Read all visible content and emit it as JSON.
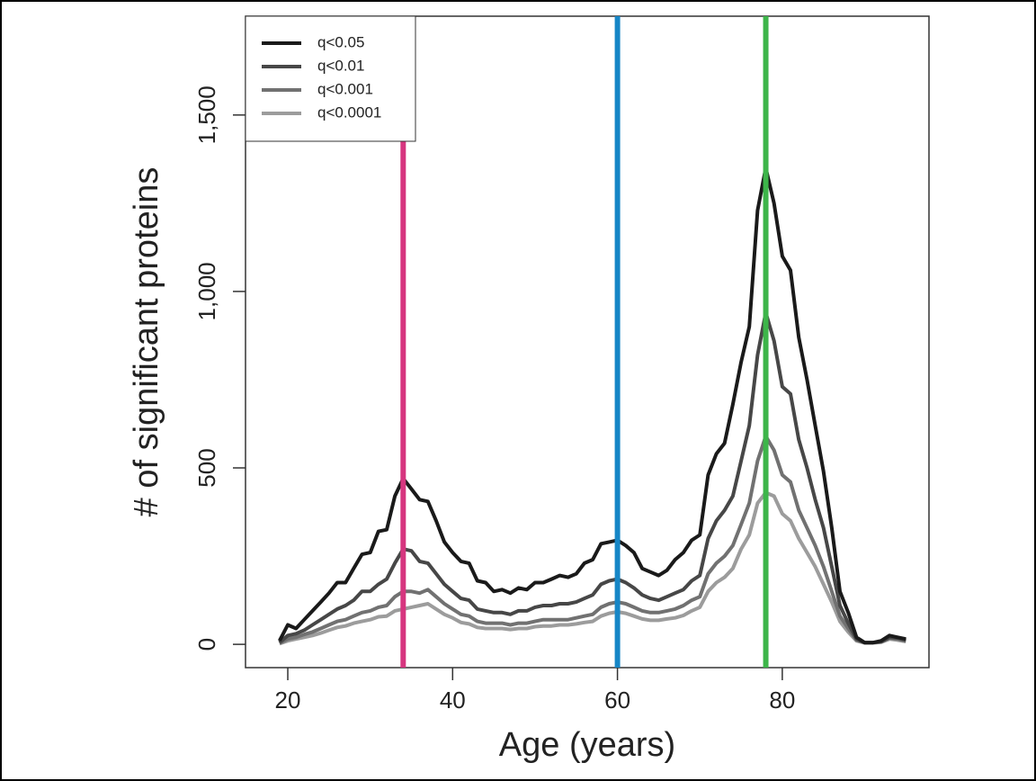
{
  "chart_data": {
    "type": "line",
    "x_label": "Age (years)",
    "y_label": "# of significant proteins",
    "x": [
      19,
      20,
      21,
      22,
      23,
      24,
      25,
      26,
      27,
      28,
      29,
      30,
      31,
      32,
      33,
      34,
      35,
      36,
      37,
      38,
      39,
      40,
      41,
      42,
      43,
      44,
      45,
      46,
      47,
      48,
      49,
      50,
      51,
      52,
      53,
      54,
      55,
      56,
      57,
      58,
      59,
      60,
      61,
      62,
      63,
      64,
      65,
      66,
      67,
      68,
      69,
      70,
      71,
      72,
      73,
      74,
      75,
      76,
      77,
      78,
      79,
      80,
      81,
      82,
      83,
      84,
      85,
      86,
      87,
      88,
      89,
      90,
      91,
      92,
      93,
      94,
      95
    ],
    "series": [
      {
        "name": "q<0.05",
        "color": "#1a1a1a",
        "values": [
          10,
          55,
          45,
          70,
          95,
          120,
          145,
          175,
          175,
          215,
          255,
          260,
          320,
          325,
          420,
          470,
          440,
          410,
          405,
          350,
          290,
          260,
          235,
          230,
          180,
          175,
          150,
          155,
          145,
          160,
          155,
          175,
          175,
          185,
          195,
          190,
          200,
          230,
          240,
          285,
          290,
          295,
          280,
          260,
          215,
          205,
          195,
          210,
          240,
          260,
          295,
          310,
          480,
          540,
          570,
          680,
          800,
          900,
          1230,
          1350,
          1250,
          1100,
          1060,
          870,
          750,
          620,
          490,
          330,
          150,
          90,
          20,
          5,
          5,
          10,
          25,
          20,
          15
        ]
      },
      {
        "name": "q<0.01",
        "color": "#474747",
        "values": [
          5,
          25,
          30,
          40,
          55,
          70,
          85,
          100,
          110,
          125,
          150,
          150,
          170,
          185,
          230,
          270,
          265,
          235,
          230,
          200,
          170,
          150,
          130,
          125,
          100,
          95,
          90,
          90,
          85,
          95,
          95,
          105,
          110,
          110,
          115,
          115,
          120,
          130,
          140,
          170,
          180,
          185,
          175,
          160,
          140,
          130,
          125,
          135,
          145,
          155,
          180,
          195,
          300,
          350,
          380,
          420,
          520,
          620,
          820,
          940,
          860,
          730,
          710,
          580,
          500,
          410,
          330,
          220,
          110,
          60,
          15,
          5,
          5,
          8,
          20,
          18,
          12
        ]
      },
      {
        "name": "q<0.001",
        "color": "#717171",
        "values": [
          3,
          15,
          20,
          28,
          35,
          45,
          55,
          65,
          70,
          80,
          90,
          95,
          105,
          110,
          135,
          150,
          150,
          145,
          155,
          135,
          115,
          100,
          85,
          80,
          65,
          60,
          60,
          60,
          55,
          60,
          60,
          65,
          70,
          70,
          70,
          70,
          75,
          80,
          85,
          105,
          115,
          120,
          115,
          105,
          95,
          90,
          90,
          95,
          100,
          110,
          125,
          135,
          200,
          230,
          250,
          280,
          340,
          400,
          520,
          590,
          550,
          480,
          460,
          380,
          330,
          280,
          220,
          150,
          80,
          45,
          12,
          5,
          5,
          7,
          18,
          15,
          10
        ]
      },
      {
        "name": "q<0.0001",
        "color": "#9c9c9c",
        "values": [
          2,
          10,
          15,
          20,
          25,
          32,
          40,
          48,
          52,
          60,
          65,
          70,
          78,
          80,
          95,
          100,
          105,
          110,
          115,
          100,
          85,
          75,
          62,
          58,
          48,
          45,
          45,
          45,
          42,
          45,
          45,
          50,
          52,
          52,
          55,
          55,
          58,
          62,
          65,
          80,
          88,
          92,
          88,
          80,
          72,
          68,
          68,
          72,
          75,
          82,
          95,
          105,
          150,
          175,
          190,
          215,
          270,
          310,
          400,
          430,
          420,
          370,
          350,
          300,
          260,
          220,
          170,
          120,
          65,
          35,
          10,
          4,
          4,
          6,
          15,
          12,
          8
        ]
      }
    ],
    "vlines": [
      {
        "x": 34,
        "color": "#d6367f"
      },
      {
        "x": 60,
        "color": "#1686c6"
      },
      {
        "x": 78,
        "color": "#3db54a"
      }
    ],
    "xlim": [
      14.87,
      97.8
    ],
    "xticks": [
      20,
      40,
      60,
      80
    ],
    "ylim": [
      -66,
      1780
    ],
    "yticks": [
      0,
      500,
      {
        "value": 1000,
        "label": "1,000"
      },
      {
        "value": 1500,
        "label": "1,500"
      }
    ],
    "legend": "top-left"
  }
}
